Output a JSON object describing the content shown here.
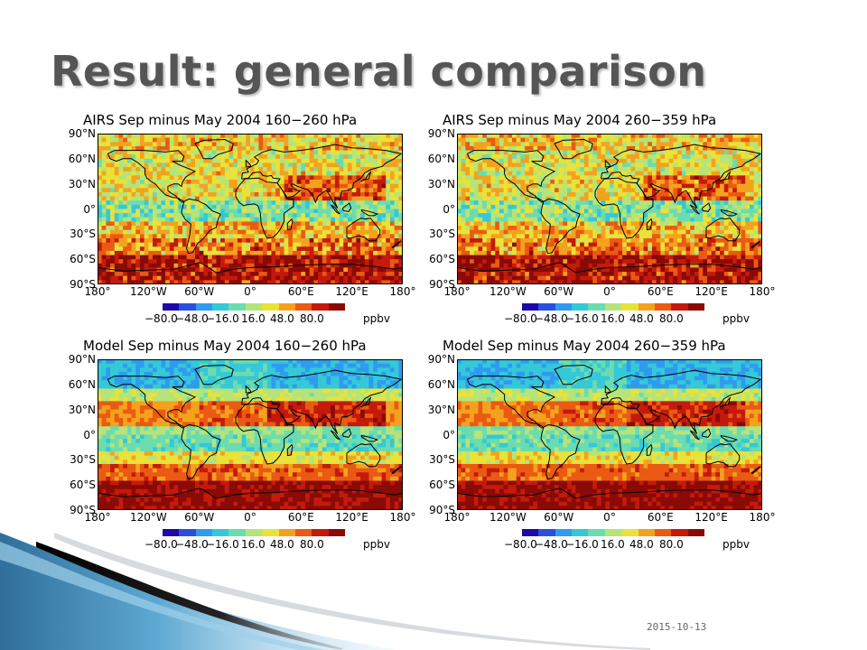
{
  "slide": {
    "title": "Result: general comparison",
    "date": "2015-10-13"
  },
  "colorbar": {
    "ticks": [
      "−80.0",
      "−48.0",
      "−16.0",
      "16.0",
      "48.0",
      "80.0"
    ],
    "unit": "ppbv",
    "colors": [
      "#1b0aa8",
      "#2a4fe0",
      "#2f9bef",
      "#34c8d8",
      "#6bdcb0",
      "#b4e47a",
      "#e8e23a",
      "#f4a21e",
      "#ea5a12",
      "#c41a0c",
      "#8a0a05"
    ]
  },
  "map_axes": {
    "y_labels": [
      "90°N",
      "60°N",
      "30°N",
      "0°",
      "30°S",
      "60°S",
      "90°S"
    ],
    "x_labels": [
      "180°",
      "120°W",
      "60°W",
      "0°",
      "60°E",
      "120°E",
      "180°"
    ]
  },
  "panels": [
    {
      "title": "AIRS Sep minus May 2004 160−260 hPa"
    },
    {
      "title": "AIRS Sep minus May 2004 260−359 hPa"
    },
    {
      "title": "Model Sep minus May 2004 160−260 hPa"
    },
    {
      "title": "Model Sep minus May 2004 260−359 hPa"
    }
  ]
}
